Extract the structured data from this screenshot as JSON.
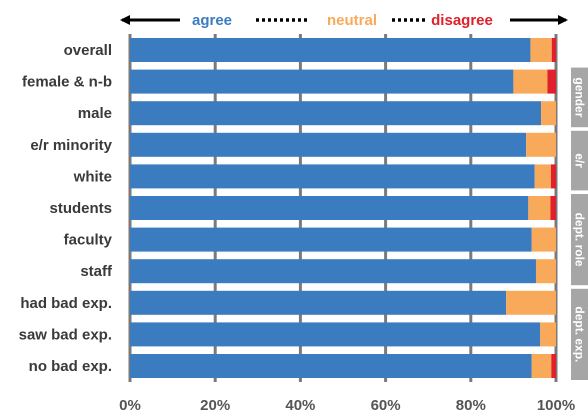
{
  "chart_data": {
    "type": "bar",
    "orientation": "horizontal",
    "stacked": true,
    "xlim": [
      0,
      100
    ],
    "x_ticks": [
      "0%",
      "20%",
      "40%",
      "60%",
      "80%",
      "100%"
    ],
    "grid": true,
    "legend": {
      "placement": "top",
      "items": [
        {
          "label": "agree",
          "color": "#3a7cbf"
        },
        {
          "label": "neutral",
          "color": "#f9a95a"
        },
        {
          "label": "disagree",
          "color": "#e0202a"
        }
      ]
    },
    "categories": [
      "overall",
      "female & n-b",
      "male",
      "e/r minority",
      "white",
      "students",
      "faculty",
      "staff",
      "had bad exp.",
      "saw bad exp.",
      "no bad exp."
    ],
    "series": [
      {
        "name": "agree",
        "color": "#3a7cbf",
        "values": [
          94,
          90,
          96.5,
          93,
          95,
          93.5,
          94.3,
          95.3,
          88.3,
          96.3,
          94.3
        ]
      },
      {
        "name": "neutral",
        "color": "#f9a95a",
        "values": [
          5,
          8,
          3.5,
          7,
          3.8,
          5.2,
          5.7,
          4.7,
          11.7,
          3.7,
          4.6
        ]
      },
      {
        "name": "disagree",
        "color": "#e0202a",
        "values": [
          1,
          2,
          0,
          0,
          1.2,
          1.3,
          0,
          0,
          0,
          0,
          1.1
        ]
      }
    ],
    "groups": [
      {
        "label": "gender",
        "from": 1,
        "to": 2
      },
      {
        "label": "e/r",
        "from": 3,
        "to": 4
      },
      {
        "label": "dept. role",
        "from": 5,
        "to": 7
      },
      {
        "label": "dept. exp.",
        "from": 8,
        "to": 10
      }
    ],
    "group_color": "#a6a6a6"
  }
}
